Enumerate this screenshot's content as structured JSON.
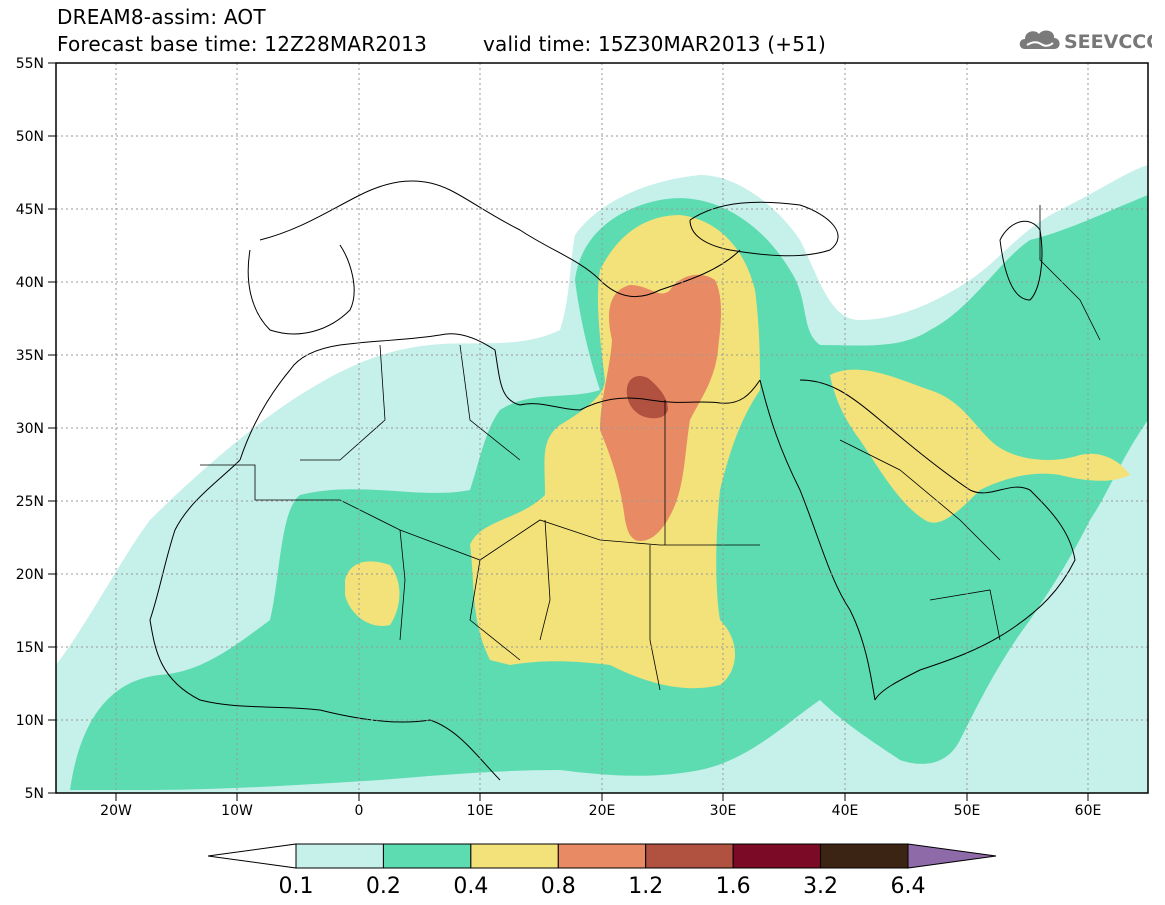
{
  "header": {
    "title": "DREAM8-assim: AOT",
    "base_time": "Forecast base time: 12Z28MAR2013",
    "valid_time": "valid time: 15Z30MAR2013 (+51)"
  },
  "logo": {
    "text": "SEEVCCC",
    "icon": "cloud-icon",
    "color": "#777777"
  },
  "map": {
    "lat_ticks": [
      "55N",
      "50N",
      "45N",
      "40N",
      "35N",
      "30N",
      "25N",
      "20N",
      "15N",
      "10N",
      "5N"
    ],
    "lon_ticks": [
      "20W",
      "10W",
      "0",
      "10E",
      "20E",
      "30E",
      "40E",
      "50E",
      "60E"
    ],
    "lon_range": [
      -25,
      65
    ],
    "lat_range": [
      5,
      55
    ],
    "grid": true
  },
  "colorbar": {
    "labels": [
      "0.1",
      "0.2",
      "0.4",
      "0.8",
      "1.2",
      "1.6",
      "3.2",
      "6.4"
    ],
    "colors": [
      "#c6f0ea",
      "#5ddcb1",
      "#f3e27a",
      "#e88b65",
      "#b1513f",
      "#7a0a25",
      "#3b2413",
      "#8e6aa8"
    ],
    "under_color": "#ffffff"
  }
}
